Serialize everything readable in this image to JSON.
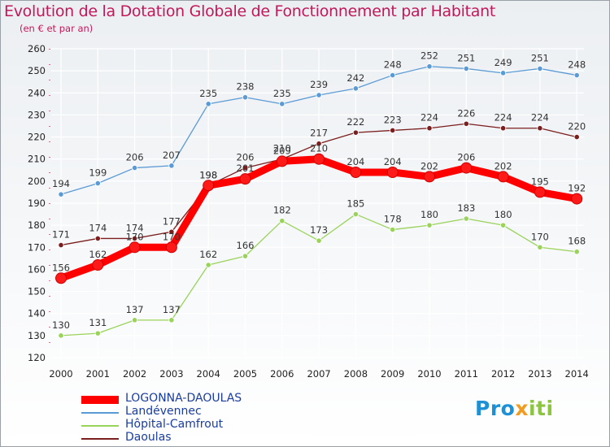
{
  "title": "Evolution de la Dotation Globale de Fonctionnement par Habitant",
  "subtitle": "(en € et par an)",
  "logo": {
    "part1": "Pro",
    "part2": "x",
    "part3": "iti"
  },
  "colors": {
    "title": "#c2185b",
    "legend_text": "#1a3d9e",
    "grid": "#ffffff",
    "axis_text": "#222222"
  },
  "chart_data": {
    "type": "line",
    "title": "Evolution de la Dotation Globale de Fonctionnement par Habitant",
    "subtitle": "(en € et par an)",
    "xlabel": "",
    "ylabel": "",
    "x": [
      "2000",
      "2001",
      "2002",
      "2003",
      "2004",
      "2005",
      "2006",
      "2007",
      "2008",
      "2009",
      "2010",
      "2011",
      "2012",
      "2013",
      "2014"
    ],
    "ylim": [
      120,
      260
    ],
    "yticks": [
      120,
      130,
      140,
      150,
      160,
      170,
      180,
      190,
      200,
      210,
      220,
      230,
      240,
      250,
      260
    ],
    "grid": true,
    "legend_position": "bottom-left",
    "series": [
      {
        "name": "LOGONNA-DAOULAS",
        "color": "#ff0000",
        "emphasis": true,
        "values": [
          156,
          162,
          170,
          170,
          198,
          201,
          209,
          210,
          204,
          204,
          202,
          206,
          202,
          195,
          192
        ]
      },
      {
        "name": "Landévennec",
        "color": "#5b9bd5",
        "emphasis": false,
        "values": [
          194,
          199,
          206,
          207,
          235,
          238,
          235,
          239,
          242,
          248,
          252,
          251,
          249,
          251,
          248
        ]
      },
      {
        "name": "Hôpital-Camfrout",
        "color": "#9ad35a",
        "emphasis": false,
        "values": [
          130,
          131,
          137,
          137,
          162,
          166,
          182,
          173,
          185,
          178,
          180,
          183,
          180,
          170,
          168
        ]
      },
      {
        "name": "Daoulas",
        "color": "#7b1e1e",
        "emphasis": false,
        "values": [
          171,
          174,
          174,
          177,
          198,
          206,
          210,
          217,
          222,
          223,
          224,
          226,
          224,
          224,
          220
        ]
      }
    ]
  }
}
